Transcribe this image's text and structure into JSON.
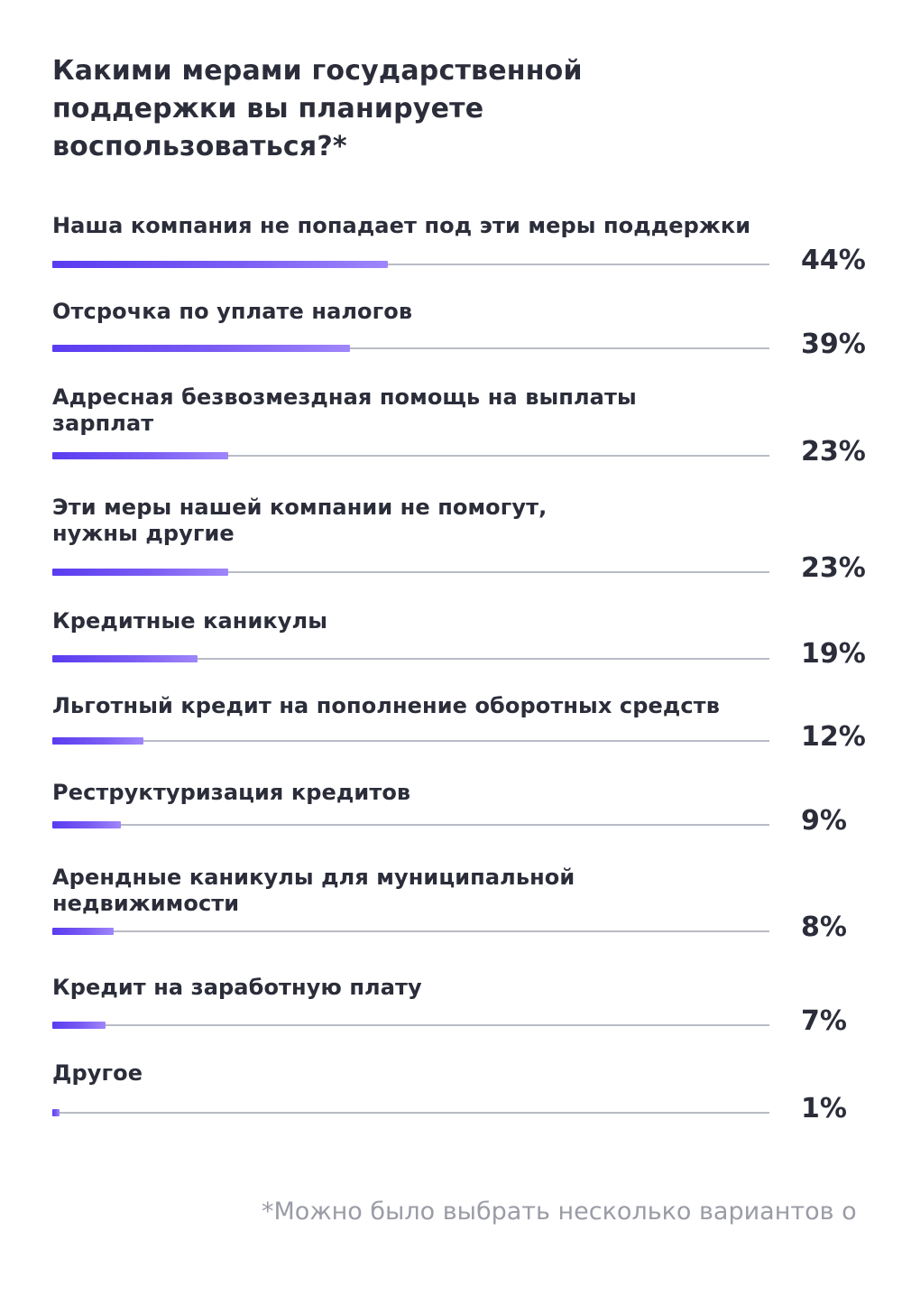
{
  "chart_data": {
    "type": "bar",
    "orientation": "horizontal",
    "title": "Какими мерами государственной поддержки вы планируете воспользоваться?*",
    "title_lines": [
      "Какими мерами государственной",
      "поддержки вы планируете",
      "воспользоваться?*"
    ],
    "categories": [
      "Наша компания не попадает под эти меры поддержки",
      "Отсрочка по уплате налогов",
      "Адресная безвозмездная помощь на выплаты зарплат",
      "Эти меры нашей компании не помогут, нужны другие",
      "Кредитные каникулы",
      "Льготный кредит на пополнение оборотных средств",
      "Реструктуризация кредитов",
      "Арендные каникулы для муниципальной недвижимости",
      "Кредит на заработную плату",
      "Другое"
    ],
    "category_lines": [
      [
        "Наша компания не попадает под эти меры поддержки"
      ],
      [
        "Отсрочка по уплате налогов"
      ],
      [
        "Адресная безвозмездная помощь на выплаты",
        "зарплат"
      ],
      [
        "Эти меры нашей компании не помогут,",
        "нужны другие"
      ],
      [
        "Кредитные каникулы"
      ],
      [
        "Льготный кредит на пополнение оборотных средств"
      ],
      [
        "Реструктуризация кредитов"
      ],
      [
        "Арендные каникулы для муниципальной",
        "недвижимости"
      ],
      [
        "Кредит на заработную плату"
      ],
      [
        "Другое"
      ]
    ],
    "values": [
      44,
      39,
      23,
      23,
      19,
      12,
      9,
      8,
      7,
      1
    ],
    "value_labels": [
      "44%",
      "39%",
      "23%",
      "23%",
      "19%",
      "12%",
      "9%",
      "8%",
      "7%",
      "1%"
    ],
    "unit": "%",
    "xlim": [
      0,
      94
    ],
    "grid": false,
    "legend": "none",
    "footnote": "*Можно было выбрать несколько вариантов о"
  },
  "colors": {
    "bar_start": "#5a3cf0",
    "bar_end": "#9f86fa",
    "track": "#b9bcc6",
    "text": "#2b2d3a",
    "footnote": "#9a9ca6"
  }
}
